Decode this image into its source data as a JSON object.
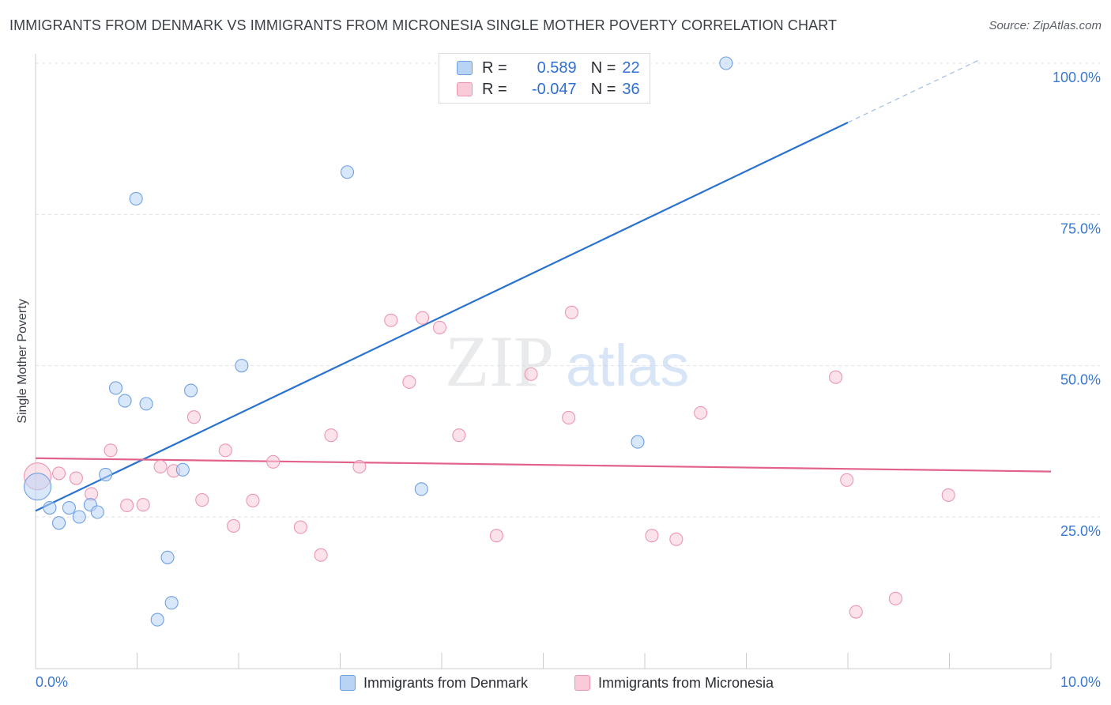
{
  "title": "IMMIGRANTS FROM DENMARK VS IMMIGRANTS FROM MICRONESIA SINGLE MOTHER POVERTY CORRELATION CHART",
  "source": "Source: ZipAtlas.com",
  "watermark": {
    "zip": "ZIP",
    "atlas": "atlas"
  },
  "colors": {
    "denmark_fill": "#b9d3f5",
    "denmark_stroke": "#6fa0e0",
    "denmark_line": "#2a72d0",
    "micronesia_fill": "#f9cbd9",
    "micronesia_stroke": "#ec95b2",
    "micronesia_line": "#e2628a",
    "axis_label": "#3a78d0",
    "grid": "#dfe2e6"
  },
  "legend": {
    "rows": [
      {
        "r_label": "R =",
        "r_value": "0.589",
        "n_label": "N =",
        "n_value": "22"
      },
      {
        "r_label": "R =",
        "r_value": "-0.047",
        "n_label": "N =",
        "n_value": "36"
      }
    ]
  },
  "bottom_legend": {
    "denmark": "Immigrants from Denmark",
    "micronesia": "Immigrants from Micronesia"
  },
  "chart_data": {
    "type": "scatter",
    "title": "IMMIGRANTS FROM DENMARK VS IMMIGRANTS FROM MICRONESIA SINGLE MOTHER POVERTY CORRELATION CHART",
    "xlabel": "",
    "ylabel": "Single Mother Poverty",
    "xlim": [
      0,
      10
    ],
    "ylim": [
      0,
      100
    ],
    "x_tick_labels": [
      "0.0%",
      "10.0%"
    ],
    "y_ticks": [
      25,
      50,
      75,
      100
    ],
    "y_tick_labels": [
      "25.0%",
      "50.0%",
      "75.0%",
      "100.0%"
    ],
    "grid": true,
    "series": [
      {
        "name": "Immigrants from Denmark",
        "r": 0.589,
        "n": 22,
        "points": [
          {
            "x": 0.02,
            "y": 30.0,
            "big": true
          },
          {
            "x": 0.14,
            "y": 26.5
          },
          {
            "x": 0.23,
            "y": 24.0
          },
          {
            "x": 0.33,
            "y": 26.5
          },
          {
            "x": 0.43,
            "y": 25.0
          },
          {
            "x": 0.54,
            "y": 27.0
          },
          {
            "x": 0.61,
            "y": 25.8
          },
          {
            "x": 0.69,
            "y": 32.0
          },
          {
            "x": 0.79,
            "y": 46.3
          },
          {
            "x": 0.88,
            "y": 44.2
          },
          {
            "x": 0.99,
            "y": 77.6
          },
          {
            "x": 1.09,
            "y": 43.7
          },
          {
            "x": 1.2,
            "y": 8.0
          },
          {
            "x": 1.3,
            "y": 18.3
          },
          {
            "x": 1.34,
            "y": 10.8
          },
          {
            "x": 1.45,
            "y": 32.8
          },
          {
            "x": 1.53,
            "y": 45.9
          },
          {
            "x": 2.03,
            "y": 50.0
          },
          {
            "x": 3.07,
            "y": 82.0
          },
          {
            "x": 3.8,
            "y": 29.6
          },
          {
            "x": 5.93,
            "y": 37.4
          },
          {
            "x": 6.8,
            "y": 100.0
          }
        ],
        "trend": {
          "x1": 0.0,
          "y1": 26.0,
          "x2": 8.0,
          "y2": 90.2,
          "dash_x2": 9.3,
          "dash_y2": 100.6
        }
      },
      {
        "name": "Immigrants from Micronesia",
        "r": -0.047,
        "n": 36,
        "points": [
          {
            "x": 0.02,
            "y": 31.7,
            "big": true
          },
          {
            "x": 0.23,
            "y": 32.2
          },
          {
            "x": 0.4,
            "y": 31.4
          },
          {
            "x": 0.55,
            "y": 28.8
          },
          {
            "x": 0.74,
            "y": 36.0
          },
          {
            "x": 0.9,
            "y": 26.9
          },
          {
            "x": 1.06,
            "y": 27.0
          },
          {
            "x": 1.23,
            "y": 33.3
          },
          {
            "x": 1.36,
            "y": 32.6
          },
          {
            "x": 1.56,
            "y": 41.5
          },
          {
            "x": 1.64,
            "y": 27.8
          },
          {
            "x": 1.87,
            "y": 36.0
          },
          {
            "x": 1.95,
            "y": 23.5
          },
          {
            "x": 2.14,
            "y": 27.7
          },
          {
            "x": 2.34,
            "y": 34.1
          },
          {
            "x": 2.61,
            "y": 23.3
          },
          {
            "x": 2.81,
            "y": 18.7
          },
          {
            "x": 2.91,
            "y": 38.5
          },
          {
            "x": 3.19,
            "y": 33.3
          },
          {
            "x": 3.5,
            "y": 57.5
          },
          {
            "x": 3.68,
            "y": 47.3
          },
          {
            "x": 3.81,
            "y": 57.9
          },
          {
            "x": 3.98,
            "y": 56.3
          },
          {
            "x": 4.17,
            "y": 38.5
          },
          {
            "x": 4.54,
            "y": 21.9
          },
          {
            "x": 4.88,
            "y": 48.6
          },
          {
            "x": 5.25,
            "y": 41.4
          },
          {
            "x": 5.28,
            "y": 58.8
          },
          {
            "x": 6.07,
            "y": 21.9
          },
          {
            "x": 6.31,
            "y": 21.3
          },
          {
            "x": 6.55,
            "y": 42.2
          },
          {
            "x": 7.88,
            "y": 48.1
          },
          {
            "x": 7.99,
            "y": 31.1
          },
          {
            "x": 8.08,
            "y": 9.3
          },
          {
            "x": 8.47,
            "y": 11.5
          },
          {
            "x": 8.99,
            "y": 28.6
          }
        ],
        "trend": {
          "x1": 0.0,
          "y1": 34.7,
          "x2": 10.0,
          "y2": 32.5
        }
      }
    ]
  }
}
